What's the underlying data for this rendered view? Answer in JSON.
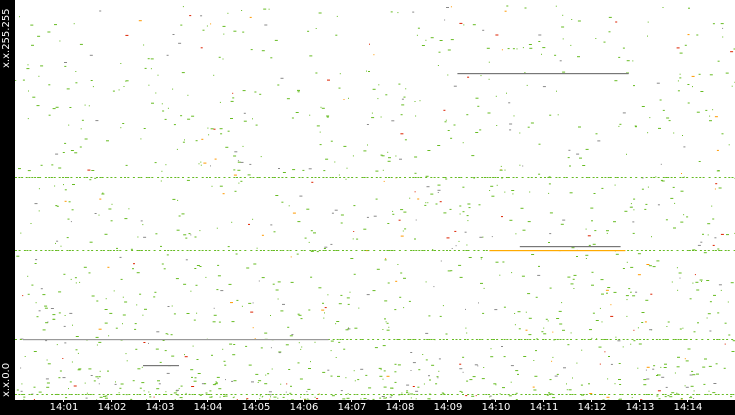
{
  "chart_data": {
    "type": "scatter",
    "title": "",
    "xlabel": "",
    "ylabel": "",
    "x_range": [
      "14:00:00",
      "14:15:00"
    ],
    "y_range": [
      0,
      65535
    ],
    "y_tick_labels": [
      "x.x.0.0",
      "x.x.255.255"
    ],
    "x_tick_labels": [
      "14:01",
      "14:02",
      "14:03",
      "14:04",
      "14:05",
      "14:06",
      "14:07",
      "14:08",
      "14:09",
      "14:10",
      "14:11",
      "14:12",
      "14:13",
      "14:14"
    ],
    "colors": {
      "normal": "#66bb22",
      "medium": "#ff9900",
      "high": "#dd2200",
      "sustained": "#888888",
      "axis": "#000000"
    },
    "segments": [
      {
        "from": "14:09:13",
        "to": "14:12:47",
        "ip": 53575,
        "color": "#777777"
      },
      {
        "from": "14:10:31",
        "to": "14:12:37",
        "ip": 25231,
        "color": "#777777"
      },
      {
        "from": "14:09:53",
        "to": "14:12:43",
        "ip": 24576,
        "color": "#ffaa00"
      },
      {
        "from": "14:00:10",
        "to": "14:06:32",
        "ip": 9994,
        "color": "#999999"
      },
      {
        "from": "14:02:40",
        "to": "14:03:25",
        "ip": 5734,
        "color": "#777777"
      }
    ],
    "dotted_rows": [
      {
        "ip": 24576,
        "color": "#66bb22"
      },
      {
        "ip": 36536,
        "color": "#66bb22"
      },
      {
        "ip": 9994,
        "color": "#66bb22"
      },
      {
        "ip": 983,
        "color": "#66bb22"
      }
    ]
  }
}
